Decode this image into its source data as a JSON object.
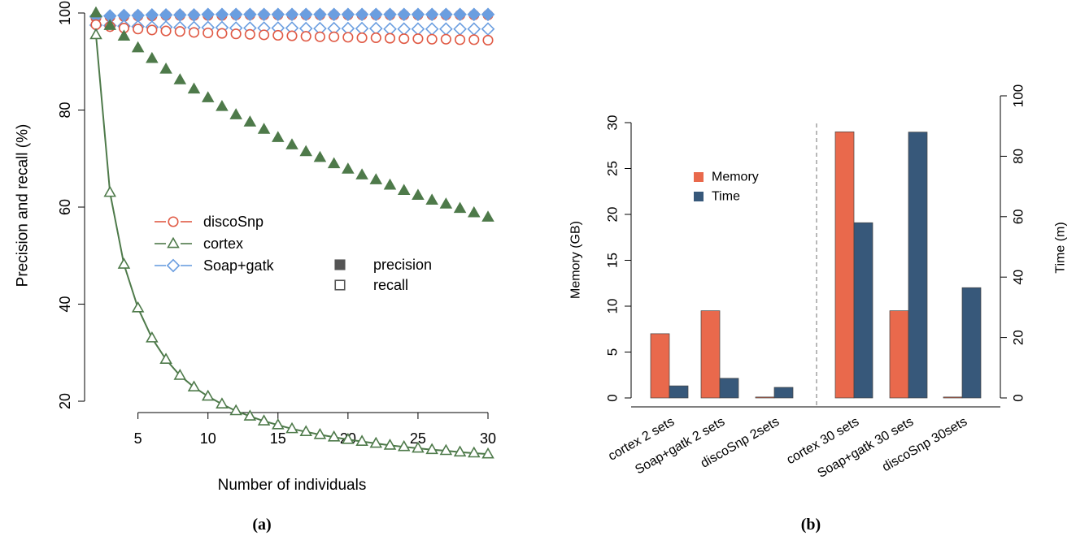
{
  "chart_data": [
    {
      "type": "scatter",
      "panel_label": "(a)",
      "xlabel": "Number of individuals",
      "ylabel": "Precision and recall (%)",
      "x_ticks": [
        5,
        10,
        15,
        20,
        25,
        30
      ],
      "y_ticks": [
        20,
        40,
        60,
        80,
        100
      ],
      "xlim": [
        2,
        30
      ],
      "ylim": [
        19,
        100
      ],
      "legend_tools": [
        {
          "name": "discoSnp",
          "marker": "circle",
          "color": "#e05a45"
        },
        {
          "name": "cortex",
          "marker": "triangle",
          "color": "#4e7a4a"
        },
        {
          "name": "Soap+gatk",
          "marker": "diamond",
          "color": "#6b9ee0"
        }
      ],
      "legend_metrics": [
        {
          "name": "precision",
          "fill": "filled"
        },
        {
          "name": "recall",
          "fill": "open"
        }
      ],
      "x": [
        2,
        3,
        4,
        5,
        6,
        7,
        8,
        9,
        10,
        11,
        12,
        13,
        14,
        15,
        16,
        17,
        18,
        19,
        20,
        21,
        22,
        23,
        24,
        25,
        26,
        27,
        28,
        29,
        30
      ],
      "series": [
        {
          "tool": "discoSnp",
          "metric": "precision",
          "marker": "circle",
          "filled": true,
          "color": "#e05a45",
          "values": [
            99.0,
            99.2,
            99.3,
            99.4,
            99.4,
            99.5,
            99.5,
            99.5,
            99.5,
            99.5,
            99.6,
            99.6,
            99.6,
            99.6,
            99.6,
            99.6,
            99.6,
            99.6,
            99.6,
            99.6,
            99.6,
            99.6,
            99.6,
            99.6,
            99.6,
            99.6,
            99.6,
            99.6,
            99.6
          ]
        },
        {
          "tool": "Soap+gatk",
          "metric": "precision",
          "marker": "diamond",
          "filled": true,
          "color": "#6b9ee0",
          "values": [
            99.3,
            99.4,
            99.5,
            99.5,
            99.6,
            99.6,
            99.6,
            99.6,
            99.7,
            99.7,
            99.7,
            99.7,
            99.7,
            99.7,
            99.7,
            99.7,
            99.7,
            99.7,
            99.7,
            99.7,
            99.7,
            99.7,
            99.7,
            99.7,
            99.7,
            99.7,
            99.7,
            99.7,
            99.7
          ]
        },
        {
          "tool": "Soap+gatk",
          "metric": "recall",
          "marker": "diamond",
          "filled": false,
          "color": "#6b9ee0",
          "values": [
            97.5,
            97.4,
            97.3,
            97.2,
            97.1,
            97.1,
            97.0,
            97.0,
            97.0,
            97.0,
            96.9,
            96.9,
            96.9,
            96.9,
            96.9,
            96.8,
            96.8,
            96.8,
            96.8,
            96.8,
            96.8,
            96.7,
            96.7,
            96.7,
            96.7,
            96.7,
            96.7,
            96.7,
            96.7
          ]
        },
        {
          "tool": "discoSnp",
          "metric": "recall",
          "marker": "circle",
          "filled": false,
          "color": "#e05a45",
          "values": [
            97.6,
            97.2,
            96.9,
            96.7,
            96.5,
            96.3,
            96.2,
            96.0,
            95.9,
            95.8,
            95.7,
            95.6,
            95.5,
            95.4,
            95.3,
            95.2,
            95.1,
            95.1,
            95.0,
            94.9,
            94.9,
            94.8,
            94.7,
            94.7,
            94.6,
            94.6,
            94.5,
            94.5,
            94.4
          ]
        },
        {
          "tool": "cortex",
          "metric": "precision",
          "marker": "triangle",
          "filled": true,
          "color": "#4e7a4a",
          "values": [
            100.0,
            97.4,
            95.2,
            92.8,
            90.6,
            88.4,
            86.2,
            84.3,
            82.5,
            80.7,
            79.0,
            77.5,
            76.0,
            74.3,
            72.8,
            71.4,
            70.2,
            68.9,
            67.8,
            66.6,
            65.6,
            64.5,
            63.4,
            62.4,
            61.4,
            60.6,
            59.7,
            58.8,
            57.9
          ]
        },
        {
          "tool": "cortex",
          "metric": "recall",
          "marker": "triangle",
          "filled": false,
          "color": "#4e7a4a",
          "line": true,
          "values": [
            95.5,
            63.0,
            48.2,
            39.2,
            33.0,
            28.6,
            25.3,
            22.9,
            21.0,
            19.4,
            18.0,
            16.9,
            15.9,
            15.1,
            14.3,
            13.7,
            13.1,
            12.6,
            12.1,
            11.7,
            11.3,
            10.9,
            10.6,
            10.3,
            10.0,
            9.8,
            9.5,
            9.3,
            9.1
          ]
        }
      ]
    },
    {
      "type": "bar",
      "panel_label": "(b)",
      "categories": [
        "cortex 2 sets",
        "Soap+gatk 2 sets",
        "discoSnp 2sets",
        "cortex 30 sets",
        "Soap+gatk 30 sets",
        "discoSnp 30sets"
      ],
      "ylabel_left": "Memory (GB)",
      "ylabel_right": "Time (m)",
      "y_left_ticks": [
        0,
        5,
        10,
        15,
        20,
        25,
        30
      ],
      "y_right_ticks": [
        0,
        20,
        40,
        60,
        80,
        100
      ],
      "ylim_left": [
        0,
        30
      ],
      "ylim_right": [
        0,
        100
      ],
      "group_separator_after": 2,
      "legend": [
        {
          "name": "Memory",
          "color": "#e9694c"
        },
        {
          "name": "Time",
          "color": "#37587a"
        }
      ],
      "series": [
        {
          "name": "Memory",
          "axis": "left",
          "color": "#e9694c",
          "values": [
            7.0,
            9.5,
            0.1,
            29.0,
            9.5,
            0.1
          ]
        },
        {
          "name": "Time",
          "axis": "right",
          "color": "#37587a",
          "values": [
            4,
            6.5,
            3.5,
            58,
            88,
            36.5
          ]
        }
      ]
    }
  ]
}
